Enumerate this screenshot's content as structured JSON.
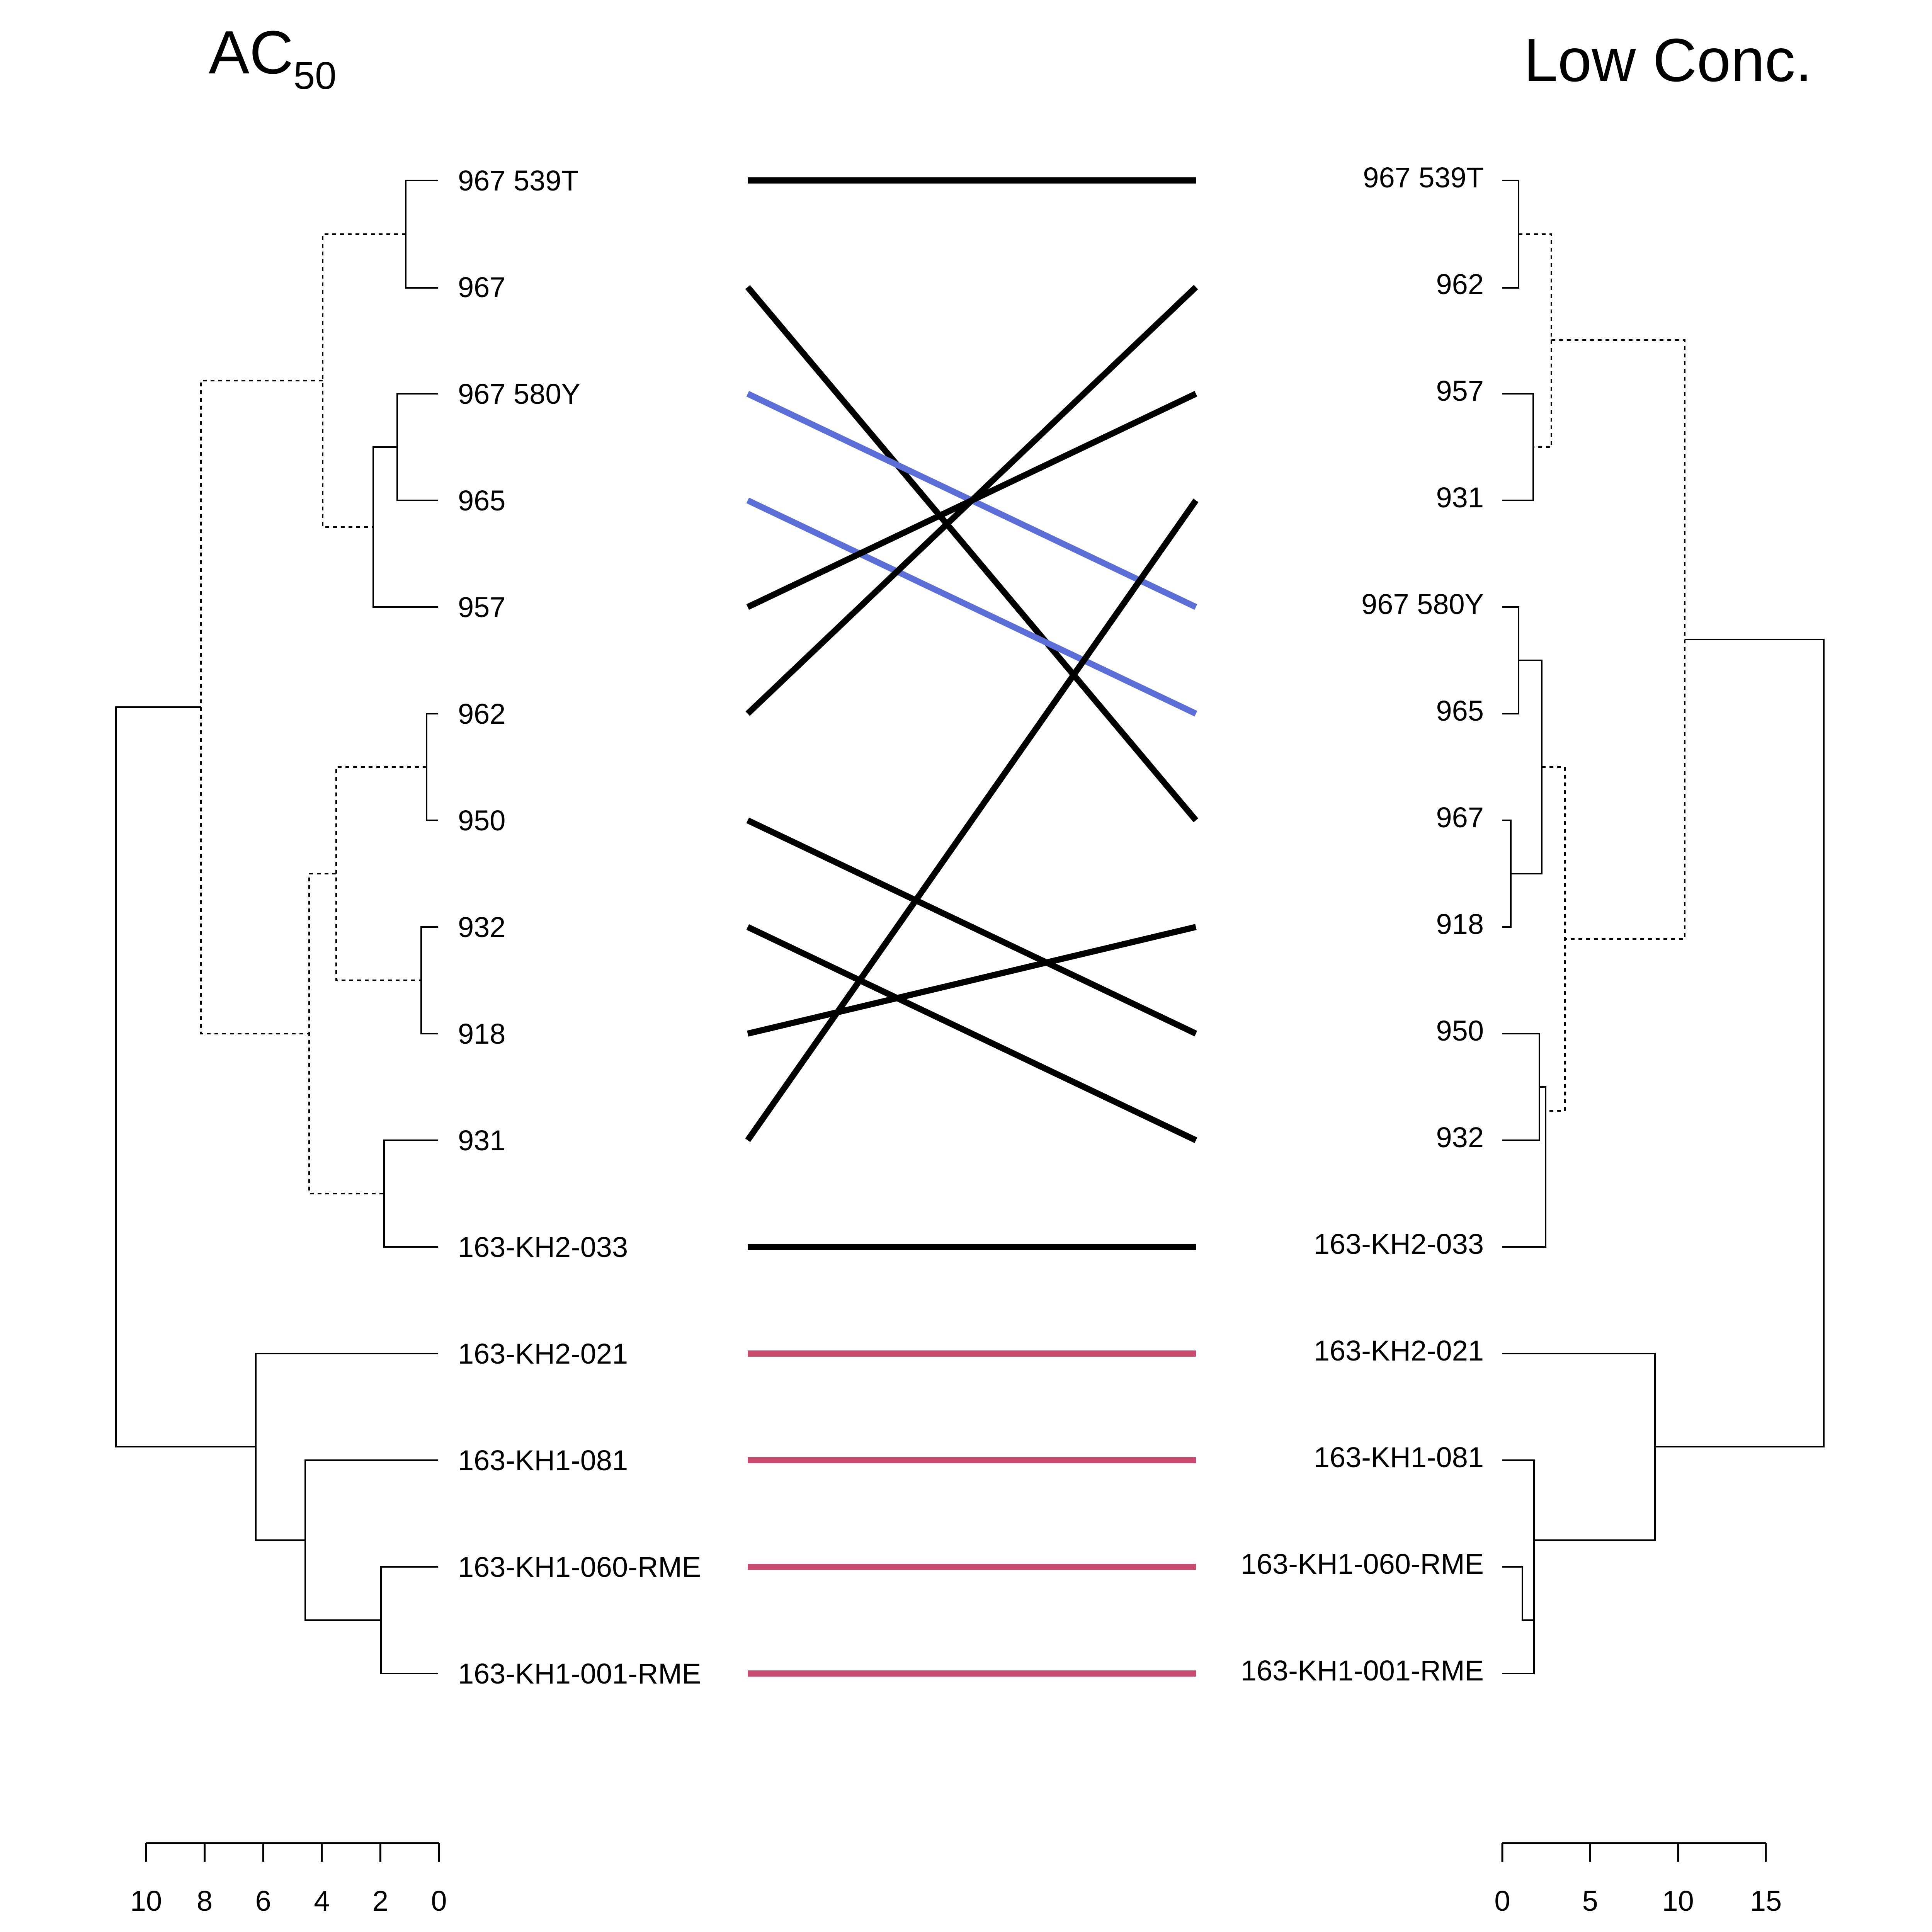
{
  "titles": {
    "left_main": "AC",
    "left_sub": "50",
    "right": "Low Conc."
  },
  "left_labels": [
    "967 539T",
    "967",
    "967 580Y",
    "965",
    "957",
    "962",
    "950",
    "932",
    "918",
    "931",
    "163-KH2-033",
    "163-KH2-021",
    "163-KH1-081",
    "163-KH1-060-RME",
    "163-KH1-001-RME"
  ],
  "right_labels": [
    "967 539T",
    "962",
    "957",
    "931",
    "967 580Y",
    "965",
    "967",
    "918",
    "950",
    "932",
    "163-KH2-033",
    "163-KH2-021",
    "163-KH1-081",
    "163-KH1-060-RME",
    "163-KH1-001-RME"
  ],
  "left_axis": {
    "ticks": [
      "10",
      "8",
      "6",
      "4",
      "2",
      "0"
    ]
  },
  "right_axis": {
    "ticks": [
      "0",
      "5",
      "10",
      "15"
    ]
  },
  "colors": {
    "black": "#000000",
    "blue": "#5b6fd6",
    "red": "#c84a6e"
  },
  "connections": [
    {
      "from": 0,
      "to": 0,
      "color": "black"
    },
    {
      "from": 1,
      "to": 6,
      "color": "black"
    },
    {
      "from": 2,
      "to": 4,
      "color": "blue"
    },
    {
      "from": 3,
      "to": 5,
      "color": "blue"
    },
    {
      "from": 4,
      "to": 2,
      "color": "black"
    },
    {
      "from": 5,
      "to": 1,
      "color": "black"
    },
    {
      "from": 6,
      "to": 8,
      "color": "black"
    },
    {
      "from": 7,
      "to": 9,
      "color": "black"
    },
    {
      "from": 8,
      "to": 7,
      "color": "black"
    },
    {
      "from": 9,
      "to": 3,
      "color": "black"
    },
    {
      "from": 10,
      "to": 10,
      "color": "black"
    },
    {
      "from": 11,
      "to": 11,
      "color": "red"
    },
    {
      "from": 12,
      "to": 12,
      "color": "red"
    },
    {
      "from": 13,
      "to": 13,
      "color": "red"
    },
    {
      "from": 14,
      "to": 14,
      "color": "red"
    }
  ]
}
